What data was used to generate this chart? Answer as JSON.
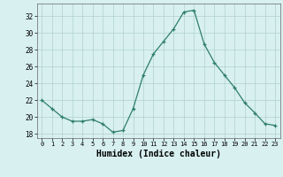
{
  "x": [
    0,
    1,
    2,
    3,
    4,
    5,
    6,
    7,
    8,
    9,
    10,
    11,
    12,
    13,
    14,
    15,
    16,
    17,
    18,
    19,
    20,
    21,
    22,
    23
  ],
  "y": [
    22,
    21,
    20,
    19.5,
    19.5,
    19.7,
    19.2,
    18.2,
    18.4,
    21,
    25,
    27.5,
    29,
    30.5,
    32.5,
    32.7,
    28.7,
    26.5,
    25,
    23.5,
    21.7,
    20.5,
    19.2,
    19.0
  ],
  "line_color": "#2e7d6e",
  "marker": "+",
  "marker_size": 3,
  "bg_color": "#d8f0f0",
  "grid_color": "#b0d0d0",
  "xlabel": "Humidex (Indice chaleur)",
  "xlabel_fontsize": 7,
  "ylabel_ticks": [
    18,
    20,
    22,
    24,
    26,
    28,
    30,
    32
  ],
  "xtick_labels": [
    "0",
    "1",
    "2",
    "3",
    "4",
    "5",
    "6",
    "7",
    "8",
    "9",
    "10",
    "11",
    "12",
    "13",
    "14",
    "15",
    "16",
    "17",
    "18",
    "19",
    "20",
    "21",
    "22",
    "23"
  ],
  "ylim": [
    17.5,
    33.5
  ],
  "xlim": [
    -0.5,
    23.5
  ]
}
